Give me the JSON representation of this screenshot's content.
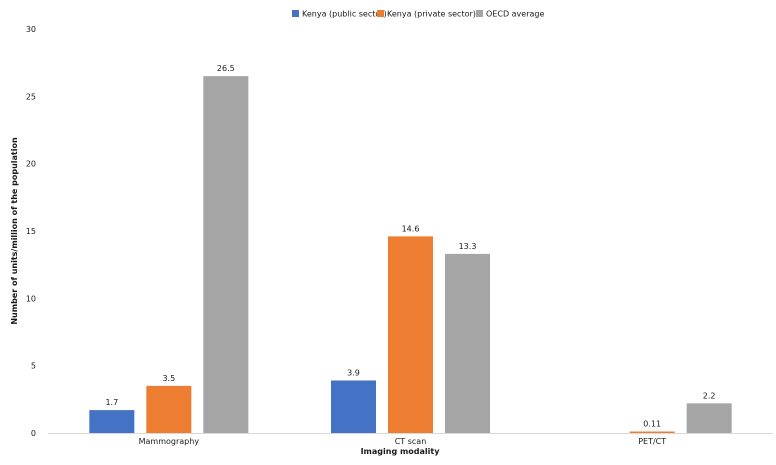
{
  "chart_data": {
    "type": "bar",
    "title": "",
    "xlabel": "Imaging modality",
    "ylabel": "Number of units/million of the population",
    "categories": [
      "Mammography",
      "CT scan",
      "PET/CT"
    ],
    "series": [
      {
        "name": "Kenya (public sector)",
        "color": "#4472c4",
        "values": [
          1.7,
          3.9,
          null
        ],
        "labels": [
          "1.7",
          "3.9",
          ""
        ]
      },
      {
        "name": "Kenya (private sector)",
        "color": "#ed7d31",
        "values": [
          3.5,
          14.6,
          0.11
        ],
        "labels": [
          "3.5",
          "14.6",
          "0.11"
        ]
      },
      {
        "name": "OECD average",
        "color": "#a5a5a5",
        "values": [
          26.5,
          13.3,
          2.2
        ],
        "labels": [
          "26.5",
          "13.3",
          "2.2"
        ]
      }
    ],
    "ylim": [
      0,
      30
    ],
    "yticks": [
      "0",
      "5",
      "10",
      "15",
      "20",
      "25",
      "30"
    ],
    "grid": false,
    "legend_position": "top-center"
  }
}
